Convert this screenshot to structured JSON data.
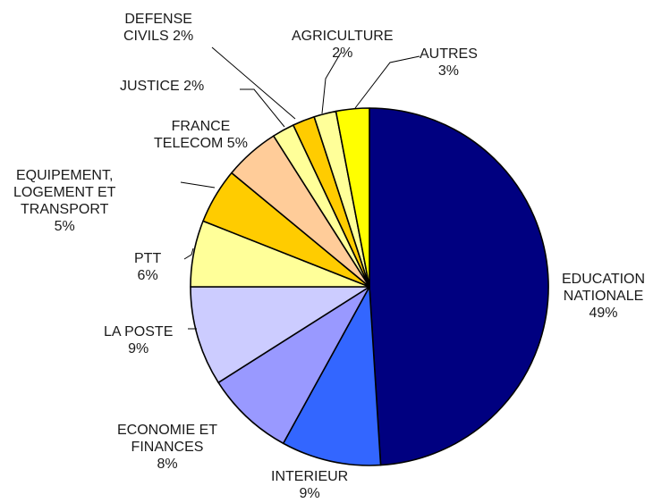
{
  "chart_data": {
    "type": "pie",
    "start_angle_deg": 0,
    "direction": "clockwise",
    "slices": [
      {
        "lines": [
          "EDUCATION",
          "NATIONALE",
          "49%"
        ],
        "value": 49,
        "color": "#000080"
      },
      {
        "lines": [
          "INTERIEUR",
          "9%"
        ],
        "value": 9,
        "color": "#3366ff"
      },
      {
        "lines": [
          "ECONOMIE ET",
          "FINANCES",
          "8%"
        ],
        "value": 8,
        "color": "#9999ff"
      },
      {
        "lines": [
          "LA POSTE",
          "9%"
        ],
        "value": 9,
        "color": "#ccccff"
      },
      {
        "lines": [
          "PTT",
          "6%"
        ],
        "value": 6,
        "color": "#ffff99"
      },
      {
        "lines": [
          "EQUIPEMENT,",
          "LOGEMENT ET",
          "TRANSPORT",
          "5%"
        ],
        "value": 5,
        "color": "#ffcc00"
      },
      {
        "lines": [
          "FRANCE",
          "TELECOM 5%"
        ],
        "value": 5,
        "color": "#ffcc99"
      },
      {
        "lines": [
          "JUSTICE  2%"
        ],
        "value": 2,
        "color": "#ffff99"
      },
      {
        "lines": [
          "DEFENSE",
          "CIVILS 2%"
        ],
        "value": 2,
        "color": "#ffcc00"
      },
      {
        "lines": [
          "AGRICULTURE",
          "2%"
        ],
        "value": 2,
        "color": "#ffff99"
      },
      {
        "lines": [
          "AUTRES",
          "3%"
        ],
        "value": 3,
        "color": "#ffff00"
      }
    ]
  }
}
